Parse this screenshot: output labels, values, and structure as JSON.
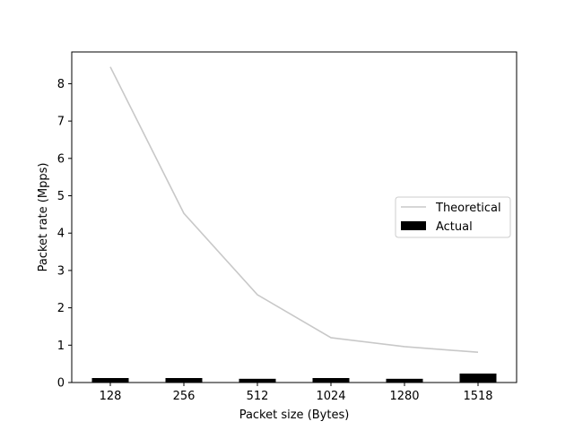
{
  "chart_data": {
    "type": "bar",
    "categories": [
      "128",
      "256",
      "512",
      "1024",
      "1280",
      "1518"
    ],
    "series": [
      {
        "name": "Theoretical",
        "type": "line",
        "color": "#c8c8c8",
        "values": [
          8.45,
          4.53,
          2.35,
          1.2,
          0.96,
          0.81
        ]
      },
      {
        "name": "Actual",
        "type": "bar",
        "color": "#000000",
        "values": [
          0.12,
          0.12,
          0.1,
          0.12,
          0.1,
          0.24
        ]
      }
    ],
    "xlabel": "Packet size (Bytes)",
    "ylabel": "Packet rate (Mpps)",
    "ylim": [
      0,
      8.85
    ],
    "yticks": [
      "0",
      "1",
      "2",
      "3",
      "4",
      "5",
      "6",
      "7",
      "8"
    ],
    "grid": false,
    "legend_position": "center-right"
  }
}
